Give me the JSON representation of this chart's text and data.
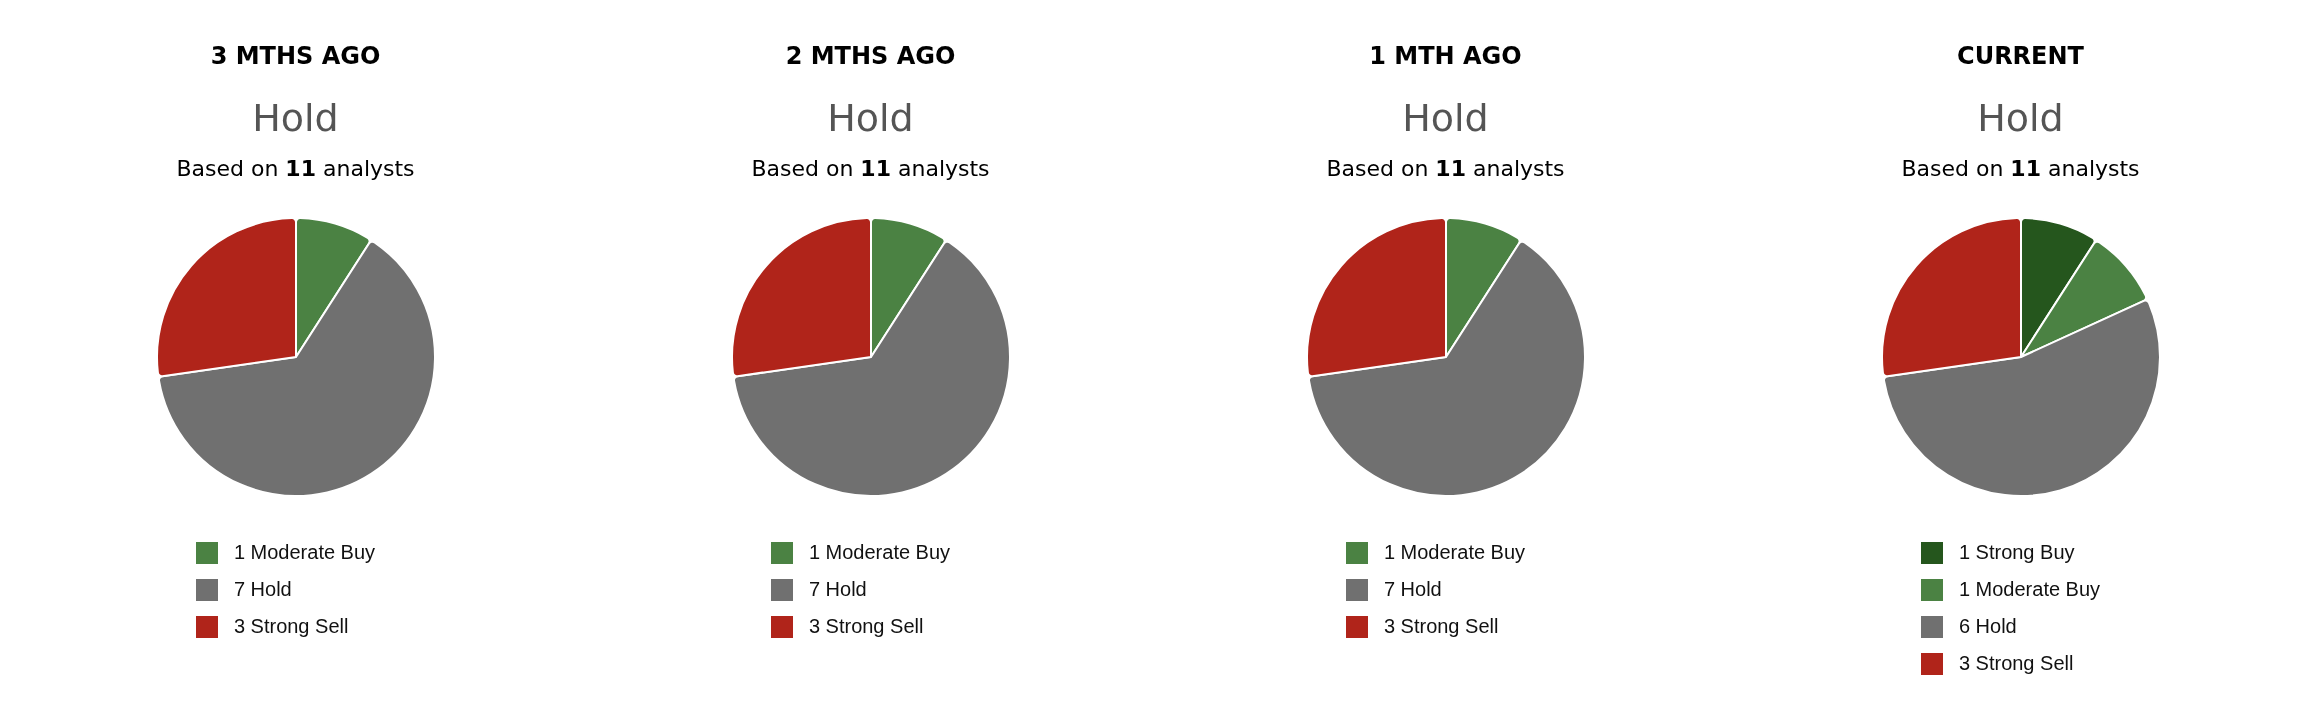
{
  "chart_data": [
    {
      "type": "pie",
      "title": "3 MTHS AGO",
      "subtitle": "Hold",
      "annotations": [
        "Based on 11 analysts"
      ],
      "categories": [
        "1 Moderate Buy",
        "7 Hold",
        "3 Strong Sell"
      ],
      "values": [
        1,
        7,
        3
      ],
      "colors": [
        "#4b8243",
        "#707070",
        "#b0241a"
      ],
      "legend": "bottom"
    },
    {
      "type": "pie",
      "title": "2 MTHS AGO",
      "subtitle": "Hold",
      "annotations": [
        "Based on 11 analysts"
      ],
      "categories": [
        "1 Moderate Buy",
        "7 Hold",
        "3 Strong Sell"
      ],
      "values": [
        1,
        7,
        3
      ],
      "colors": [
        "#4b8243",
        "#707070",
        "#b0241a"
      ],
      "legend": "bottom"
    },
    {
      "type": "pie",
      "title": "1 MTH AGO",
      "subtitle": "Hold",
      "annotations": [
        "Based on 11 analysts"
      ],
      "categories": [
        "1 Moderate Buy",
        "7 Hold",
        "3 Strong Sell"
      ],
      "values": [
        1,
        7,
        3
      ],
      "colors": [
        "#4b8243",
        "#707070",
        "#b0241a"
      ],
      "legend": "bottom"
    },
    {
      "type": "pie",
      "title": "CURRENT",
      "subtitle": "Hold",
      "annotations": [
        "Based on 11 analysts"
      ],
      "categories": [
        "1 Strong Buy",
        "1 Moderate Buy",
        "6 Hold",
        "3 Strong Sell"
      ],
      "values": [
        1,
        1,
        6,
        3
      ],
      "colors": [
        "#25561d",
        "#4b8243",
        "#707070",
        "#b0241a"
      ],
      "legend": "bottom"
    }
  ]
}
